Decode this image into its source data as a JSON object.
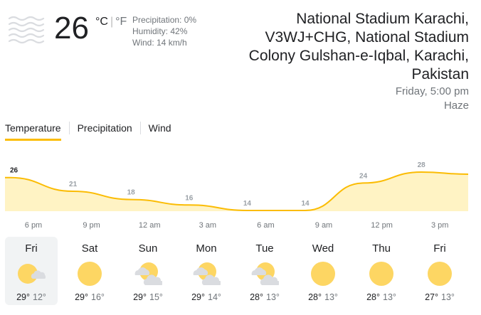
{
  "current": {
    "icon": "haze-icon",
    "temperature": "26",
    "unit_c": "°C",
    "unit_f": "°F",
    "precipitation": "Precipitation: 0%",
    "humidity": "Humidity: 42%",
    "wind": "Wind: 14 km/h"
  },
  "location": {
    "name": "National Stadium Karachi, V3WJ+CHG, National Stadium Colony Gulshan-e-Iqbal, Karachi, Pakistan",
    "time": "Friday, 5:00 pm",
    "condition": "Haze"
  },
  "tabs": [
    {
      "label": "Temperature",
      "active": true
    },
    {
      "label": "Precipitation",
      "active": false
    },
    {
      "label": "Wind",
      "active": false
    }
  ],
  "colors": {
    "accent": "#fbbc04",
    "chart_fill": "#fff3c4",
    "sun": "#fdd663",
    "cloud": "#dadce0"
  },
  "chart_data": {
    "type": "area",
    "x": [
      "6 pm",
      "9 pm",
      "12 am",
      "3 am",
      "6 am",
      "9 am",
      "12 pm",
      "3 pm"
    ],
    "values": [
      26,
      21,
      18,
      16,
      14,
      14,
      24,
      28
    ],
    "data_labels": [
      "26",
      "21",
      "18",
      "16",
      "14",
      "14",
      "24",
      "28"
    ],
    "ylim": [
      14,
      28
    ]
  },
  "forecast": [
    {
      "day": "Fri",
      "icon": "partly-cloudy-icon",
      "high": "29°",
      "low": "12°",
      "selected": true
    },
    {
      "day": "Sat",
      "icon": "sunny-icon",
      "high": "29°",
      "low": "16°",
      "selected": false
    },
    {
      "day": "Sun",
      "icon": "cloudy-sun-icon",
      "high": "29°",
      "low": "15°",
      "selected": false
    },
    {
      "day": "Mon",
      "icon": "cloudy-sun-icon",
      "high": "29°",
      "low": "14°",
      "selected": false
    },
    {
      "day": "Tue",
      "icon": "cloudy-sun-icon",
      "high": "28°",
      "low": "13°",
      "selected": false
    },
    {
      "day": "Wed",
      "icon": "sunny-icon",
      "high": "28°",
      "low": "13°",
      "selected": false
    },
    {
      "day": "Thu",
      "icon": "sunny-icon",
      "high": "28°",
      "low": "13°",
      "selected": false
    },
    {
      "day": "Fri",
      "icon": "sunny-icon",
      "high": "27°",
      "low": "13°",
      "selected": false
    }
  ]
}
